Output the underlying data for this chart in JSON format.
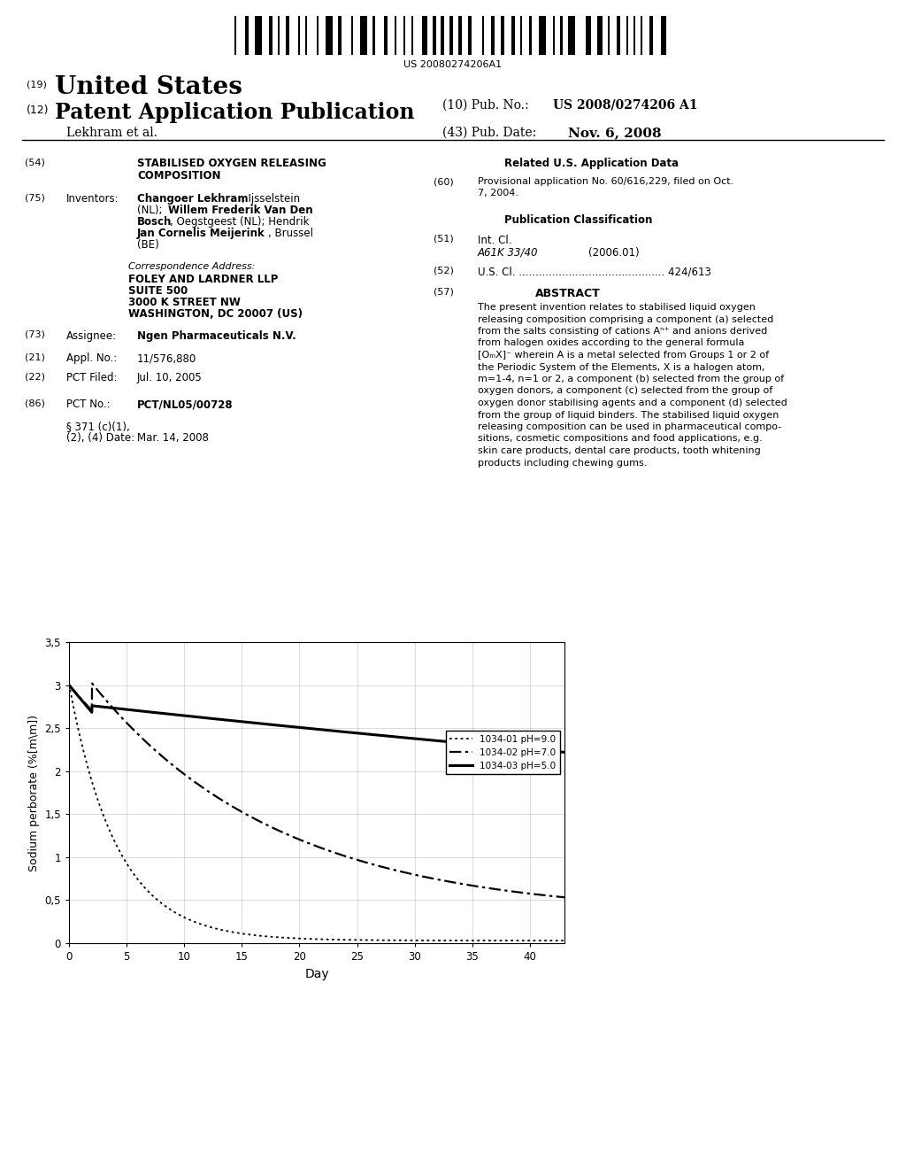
{
  "background_color": "#ffffff",
  "barcode_text": "US 20080274206A1",
  "chart_xlabel": "Day",
  "chart_ylabel": "Sodium perborate (%[m\\m])",
  "chart_xlim": [
    0,
    43
  ],
  "chart_ylim": [
    0,
    3.5
  ],
  "chart_yticks": [
    0,
    0.5,
    1,
    1.5,
    2,
    2.5,
    3,
    3.5
  ],
  "chart_xticks": [
    0,
    5,
    10,
    15,
    20,
    25,
    30,
    35,
    40
  ],
  "legend_labels": [
    "1034-01 pH=9.0",
    "1034-02 pH=7.0",
    "1034-03 pH=5.0"
  ]
}
